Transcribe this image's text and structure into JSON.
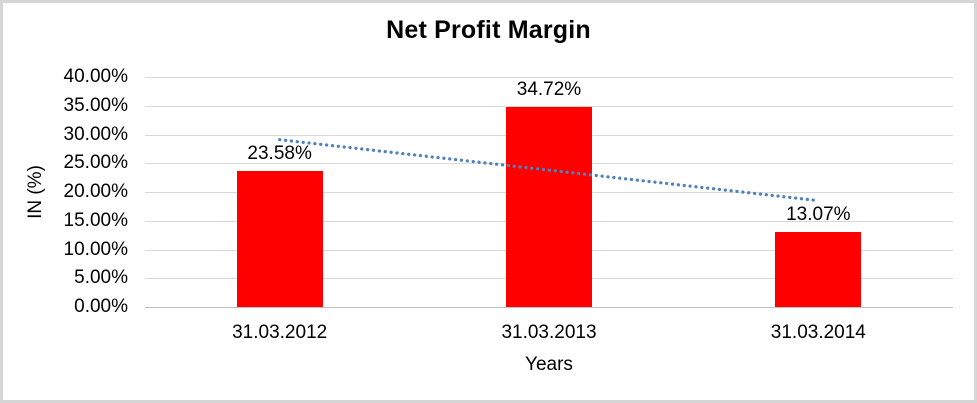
{
  "chart_data": {
    "type": "bar",
    "title": "Net Profit Margin",
    "categories": [
      "31.03.2012",
      "31.03.2013",
      "31.03.2014"
    ],
    "values": [
      23.58,
      34.72,
      13.07
    ],
    "data_labels": [
      "23.58%",
      "34.72%",
      "13.07%"
    ],
    "xlabel": "Years",
    "ylabel": "IN (%)",
    "ylim": [
      0,
      40
    ],
    "ytick_step": 5,
    "ytick_labels": [
      "40.00%",
      "35.00%",
      "30.00%",
      "25.00%",
      "20.00%",
      "15.00%",
      "10.00%",
      "5.00%",
      "0.00%"
    ],
    "grid": true,
    "legend_position": "none",
    "bar_color": "#FF0000",
    "gridline_color": "#D9D9D9",
    "axis_line_color": "#BFBFBF",
    "trendline": {
      "type": "linear",
      "style": "dotted",
      "color": "#4F81BD",
      "start_value": 29.1,
      "end_value": 18.5
    }
  }
}
